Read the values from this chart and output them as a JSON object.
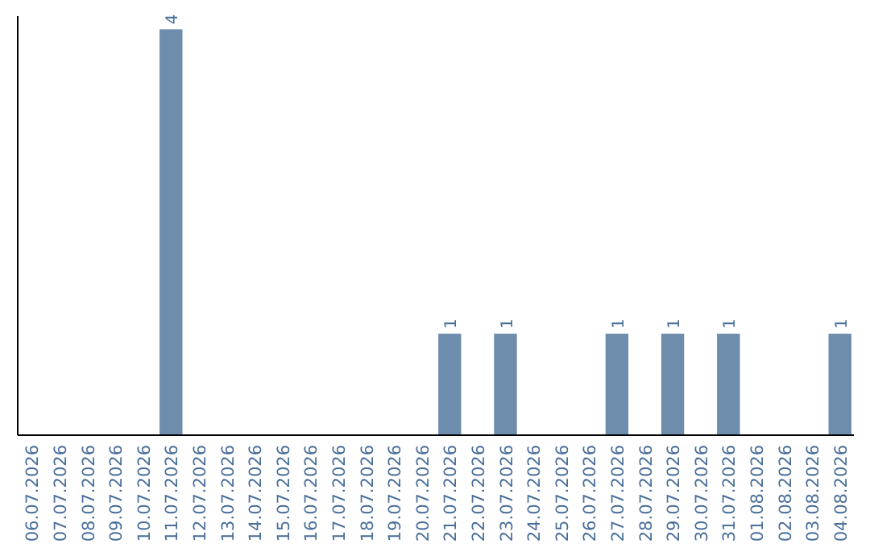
{
  "chart_data": {
    "type": "bar",
    "categories": [
      "06.07.2026",
      "07.07.2026",
      "08.07.2026",
      "09.07.2026",
      "10.07.2026",
      "11.07.2026",
      "12.07.2026",
      "13.07.2026",
      "14.07.2026",
      "15.07.2026",
      "16.07.2026",
      "17.07.2026",
      "18.07.2026",
      "19.07.2026",
      "20.07.2026",
      "21.07.2026",
      "22.07.2026",
      "23.07.2026",
      "24.07.2026",
      "25.07.2026",
      "26.07.2026",
      "27.07.2026",
      "28.07.2026",
      "29.07.2026",
      "30.07.2026",
      "31.07.2026",
      "01.08.2026",
      "02.08.2026",
      "03.08.2026",
      "04.08.2026"
    ],
    "values": [
      0,
      0,
      0,
      0,
      0,
      4,
      0,
      0,
      0,
      0,
      0,
      0,
      0,
      0,
      0,
      1,
      0,
      1,
      0,
      0,
      0,
      1,
      0,
      1,
      0,
      1,
      0,
      0,
      0,
      1
    ],
    "value_labels": [
      null,
      null,
      null,
      null,
      null,
      "4",
      null,
      null,
      null,
      null,
      null,
      null,
      null,
      null,
      null,
      "1",
      null,
      "1",
      null,
      null,
      null,
      "1",
      null,
      "1",
      null,
      "1",
      null,
      null,
      null,
      "1"
    ],
    "color": "#6e8cab",
    "ylim": [
      0,
      4.13
    ],
    "tick_labels": "x"
  }
}
